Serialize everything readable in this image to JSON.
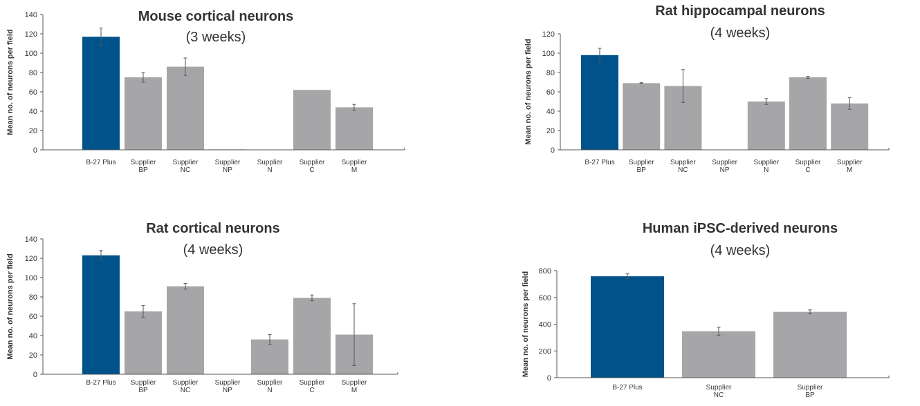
{
  "colors": {
    "highlight": "#00528a",
    "bar": "#a6a6a8",
    "axis": "#555555",
    "text": "#333333"
  },
  "chart_data": [
    {
      "type": "bar",
      "title": "Mouse cortical neurons",
      "subtitle": "(3 weeks)",
      "ylabel": "Mean no. of neurons per field",
      "ylim": [
        0,
        140
      ],
      "yticks": [
        0,
        20,
        40,
        60,
        80,
        100,
        120,
        140
      ],
      "categories": [
        [
          "B-27 Plus"
        ],
        [
          "Supplier",
          "BP"
        ],
        [
          "Supplier",
          "NC"
        ],
        [
          "Supplier",
          "NP"
        ],
        [
          "Supplier",
          "N"
        ],
        [
          "Supplier",
          "C"
        ],
        [
          "Supplier",
          "M"
        ]
      ],
      "values": [
        117,
        75,
        86,
        0.5,
        0,
        62,
        44
      ],
      "errors": [
        9,
        5,
        9,
        0,
        0,
        0,
        3
      ],
      "highlight_index": 0
    },
    {
      "type": "bar",
      "title": "Rat hippocampal neurons",
      "subtitle": "(4 weeks)",
      "ylabel": "Mean no. of neurons per field",
      "ylim": [
        0,
        120
      ],
      "yticks": [
        0,
        20,
        40,
        60,
        80,
        100,
        120
      ],
      "categories": [
        [
          "B-27 Plus"
        ],
        [
          "Supplier",
          "BP"
        ],
        [
          "Supplier",
          "NC"
        ],
        [
          "Supplier",
          "NP"
        ],
        [
          "Supplier",
          "N"
        ],
        [
          "Supplier",
          "C"
        ],
        [
          "Supplier",
          "M"
        ]
      ],
      "values": [
        98,
        69,
        66,
        0,
        50,
        75,
        48
      ],
      "errors": [
        7,
        0.5,
        17,
        0,
        3,
        1,
        6
      ],
      "highlight_index": 0
    },
    {
      "type": "bar",
      "title": "Rat cortical neurons",
      "subtitle": "(4 weeks)",
      "ylabel": "Mean no. of neurons per field",
      "ylim": [
        0,
        140
      ],
      "yticks": [
        0,
        20,
        40,
        60,
        80,
        100,
        120,
        140
      ],
      "categories": [
        [
          "B-27 Plus"
        ],
        [
          "Supplier",
          "BP"
        ],
        [
          "Supplier",
          "NC"
        ],
        [
          "Supplier",
          "NP"
        ],
        [
          "Supplier",
          "N"
        ],
        [
          "Supplier",
          "C"
        ],
        [
          "Supplier",
          "M"
        ]
      ],
      "values": [
        123,
        65,
        91,
        0,
        36,
        79,
        41
      ],
      "errors": [
        5,
        6,
        3,
        0,
        5,
        3,
        32
      ],
      "highlight_index": 0
    },
    {
      "type": "bar",
      "title": "Human iPSC-derived neurons",
      "subtitle": "(4 weeks)",
      "ylabel": "Mean no. of neurons per field",
      "ylim": [
        0,
        800
      ],
      "yticks": [
        0,
        200,
        400,
        600,
        800
      ],
      "categories": [
        [
          "B-27 Plus"
        ],
        [
          "Supplier",
          "NC"
        ],
        [
          "Supplier",
          "BP"
        ]
      ],
      "values": [
        758,
        347,
        492
      ],
      "errors": [
        18,
        30,
        15
      ],
      "highlight_index": 0
    }
  ]
}
